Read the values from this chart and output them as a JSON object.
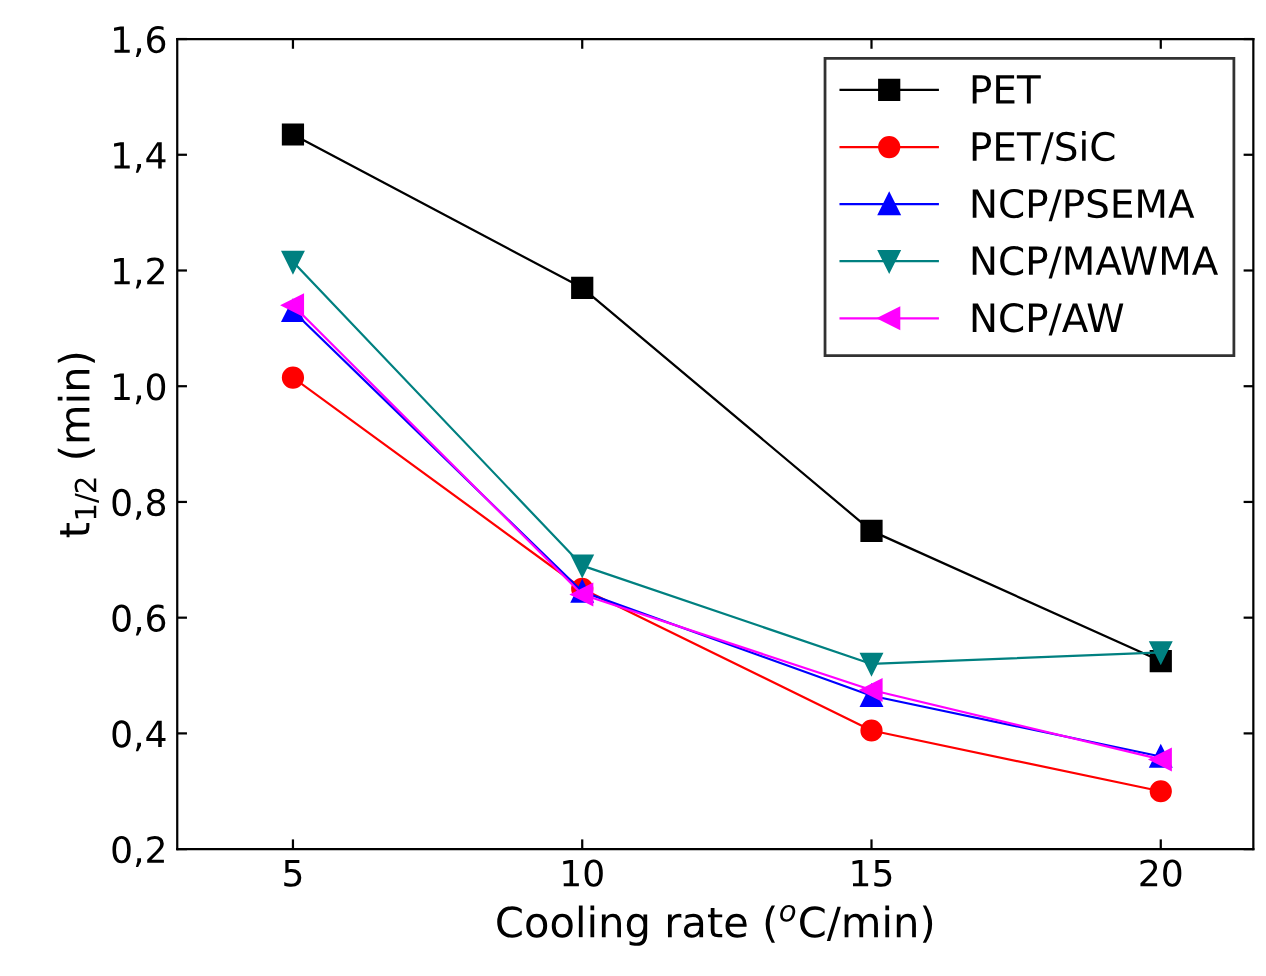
{
  "chart_data": {
    "type": "line",
    "xlabel": "Cooling rate ($^{o}$C/min)",
    "ylabel": "t$_{1/2}$ (min)",
    "x": [
      5,
      10,
      15,
      20
    ],
    "xlim": [
      3,
      21.6
    ],
    "xticks": [
      5,
      10,
      15,
      20
    ],
    "ylim": [
      0.2,
      1.6
    ],
    "yticks": [
      {
        "value": 0.2,
        "label": "0,2"
      },
      {
        "value": 0.4,
        "label": "0,4"
      },
      {
        "value": 0.6,
        "label": "0,6"
      },
      {
        "value": 0.8,
        "label": "0,8"
      },
      {
        "value": 1.0,
        "label": "1,0"
      },
      {
        "value": 1.2,
        "label": "1,2"
      },
      {
        "value": 1.4,
        "label": "1,4"
      },
      {
        "value": 1.6,
        "label": "1,6"
      }
    ],
    "legend": "top right",
    "grid": false,
    "line_style": "solid",
    "series": [
      {
        "name": "PET",
        "color": "#000000",
        "marker": "square",
        "values": [
          1.435,
          1.17,
          0.75,
          0.525
        ]
      },
      {
        "name": "PET/SiC",
        "color": "#ff0000",
        "marker": "circle",
        "values": [
          1.015,
          0.65,
          0.405,
          0.3
        ]
      },
      {
        "name": "NCP/PSEMA",
        "color": "#0000ff",
        "marker": "triangle",
        "values": [
          1.13,
          0.645,
          0.465,
          0.36
        ]
      },
      {
        "name": "NCP/MAWMA",
        "color": "#008080",
        "marker": "triangle_down",
        "values": [
          1.215,
          0.69,
          0.52,
          0.54
        ]
      },
      {
        "name": "NCP/AW",
        "color": "#ff00ff",
        "marker": "triangle_left",
        "values": [
          1.14,
          0.64,
          0.475,
          0.355
        ]
      }
    ]
  }
}
